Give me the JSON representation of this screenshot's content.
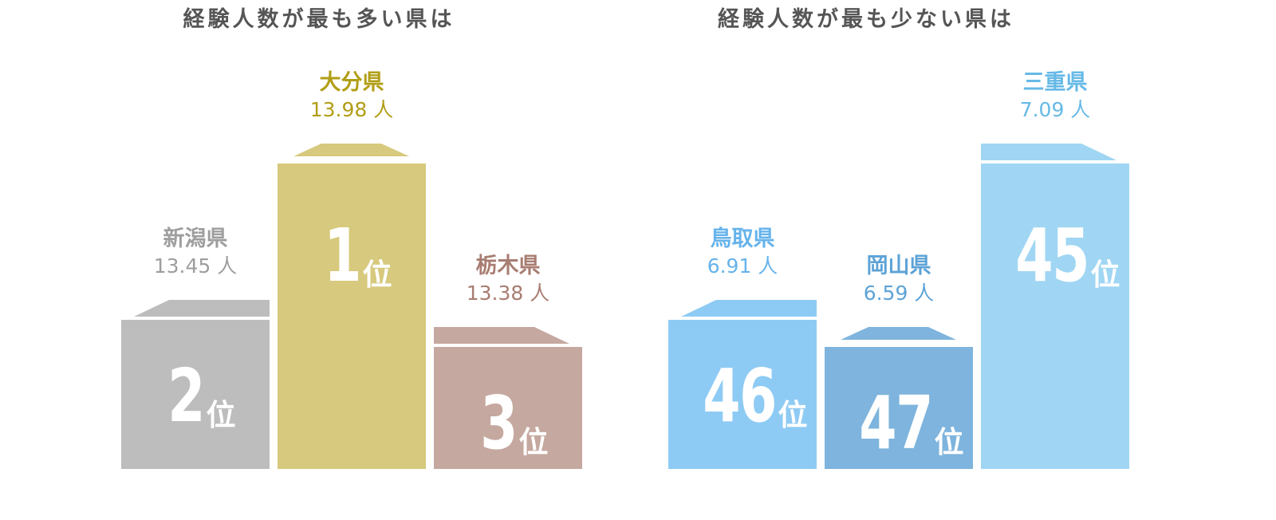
{
  "chart_data": [
    {
      "type": "bar",
      "title": "経験人数が最も多い県は",
      "categories": [
        "新潟県",
        "大分県",
        "栃木県"
      ],
      "values": [
        13.45,
        13.98,
        13.38
      ],
      "value_labels": [
        "13.45 人",
        "13.98 人",
        "13.38 人"
      ],
      "rank_numbers": [
        "2",
        "1",
        "3"
      ],
      "rank_suffix": "位",
      "colors": [
        "#bdbdbd",
        "#d7c97d",
        "#c5a89f"
      ],
      "label_colors": [
        "#9e9e9e",
        "#b19e16",
        "#a87d72"
      ],
      "grid": false
    },
    {
      "type": "bar",
      "title": "経験人数が最も少ない県は",
      "categories": [
        "鳥取県",
        "岡山県",
        "三重県"
      ],
      "values": [
        6.91,
        6.59,
        7.09
      ],
      "value_labels": [
        "6.91 人",
        "6.59 人",
        "7.09 人"
      ],
      "rank_numbers": [
        "46",
        "47",
        "45"
      ],
      "rank_suffix": "位",
      "colors": [
        "#8ecbf4",
        "#7eb4dd",
        "#a0d6f3"
      ],
      "label_colors": [
        "#66b3eb",
        "#5da3d6",
        "#66b9e6"
      ],
      "grid": false
    }
  ]
}
